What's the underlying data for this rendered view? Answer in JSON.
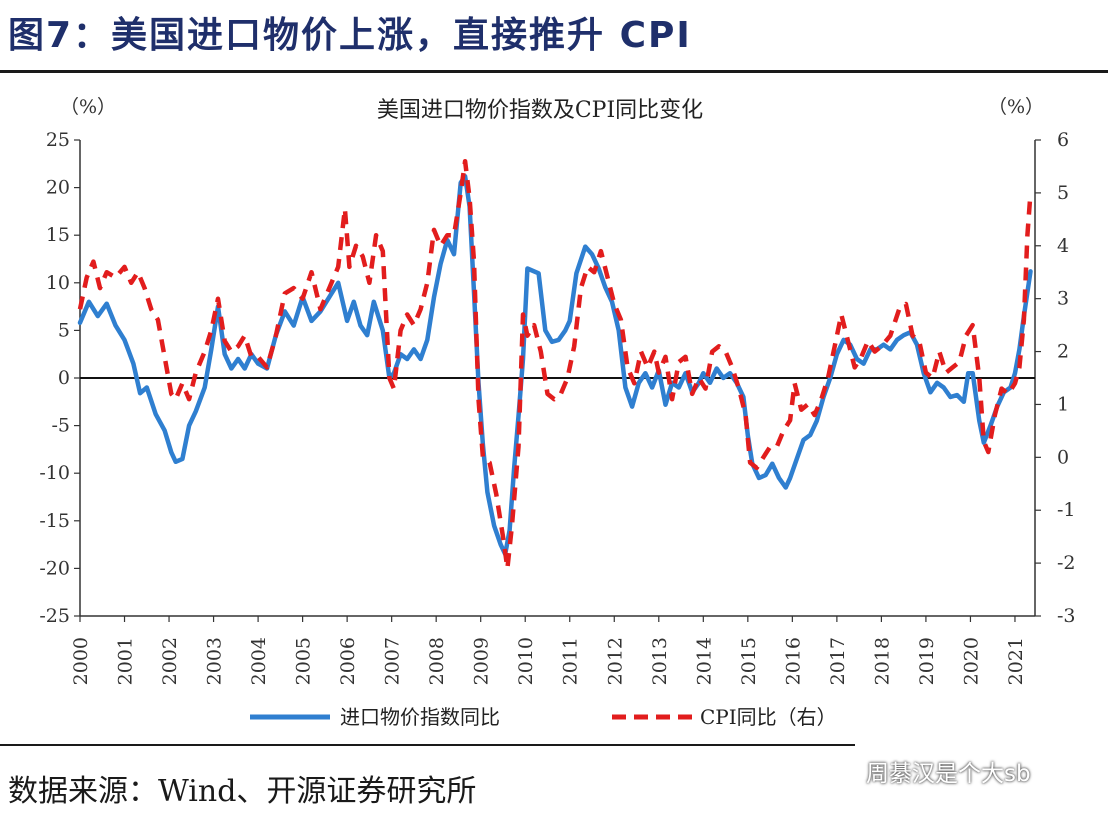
{
  "heading": "图7：美国进口物价上涨，直接推升 CPI",
  "source": "数据来源：Wind、开源证券研究所",
  "watermark": "周綦汉是个大sb",
  "colors": {
    "heading": "#1f2f6b",
    "import_series": "#2f7fd0",
    "cpi_series": "#e21d1d"
  },
  "chart_data": {
    "type": "line",
    "title": "美国进口物价指数及CPI同比变化",
    "left_unit": "（%）",
    "right_unit": "（%）",
    "y_left": {
      "min": -25,
      "max": 25,
      "step": 5
    },
    "y_right": {
      "min": -3,
      "max": 6,
      "step": 1
    },
    "x_ticks": [
      "2000",
      "2001",
      "2002",
      "2003",
      "2004",
      "2005",
      "2006",
      "2007",
      "2008",
      "2009",
      "2010",
      "2011",
      "2012",
      "2013",
      "2014",
      "2015",
      "2016",
      "2017",
      "2018",
      "2019",
      "2020",
      "2021"
    ],
    "zero_line": true,
    "legend_position": "bottom",
    "series": [
      {
        "name": "进口物价指数同比",
        "axis": "left",
        "style": "solid",
        "color": "#2f7fd0",
        "points": [
          [
            2000.0,
            5.8
          ],
          [
            2000.2,
            8.0
          ],
          [
            2000.4,
            6.5
          ],
          [
            2000.6,
            7.8
          ],
          [
            2000.8,
            5.5
          ],
          [
            2001.0,
            4.0
          ],
          [
            2001.2,
            1.5
          ],
          [
            2001.35,
            -1.6
          ],
          [
            2001.5,
            -1.0
          ],
          [
            2001.7,
            -3.8
          ],
          [
            2001.9,
            -5.5
          ],
          [
            2002.05,
            -7.8
          ],
          [
            2002.15,
            -8.8
          ],
          [
            2002.3,
            -8.5
          ],
          [
            2002.45,
            -5.0
          ],
          [
            2002.6,
            -3.5
          ],
          [
            2002.8,
            -1.0
          ],
          [
            2002.95,
            3.0
          ],
          [
            2003.1,
            7.5
          ],
          [
            2003.25,
            2.5
          ],
          [
            2003.4,
            1.0
          ],
          [
            2003.55,
            2.0
          ],
          [
            2003.7,
            1.0
          ],
          [
            2003.85,
            2.5
          ],
          [
            2004.0,
            1.5
          ],
          [
            2004.2,
            1.0
          ],
          [
            2004.4,
            4.5
          ],
          [
            2004.6,
            7.0
          ],
          [
            2004.8,
            5.5
          ],
          [
            2005.0,
            8.5
          ],
          [
            2005.2,
            6.0
          ],
          [
            2005.4,
            7.0
          ],
          [
            2005.6,
            8.5
          ],
          [
            2005.8,
            10.0
          ],
          [
            2006.0,
            6.0
          ],
          [
            2006.15,
            8.0
          ],
          [
            2006.3,
            5.5
          ],
          [
            2006.45,
            4.5
          ],
          [
            2006.6,
            8.0
          ],
          [
            2006.8,
            5.0
          ],
          [
            2006.95,
            0.0
          ],
          [
            2007.05,
            0.5
          ],
          [
            2007.2,
            2.5
          ],
          [
            2007.35,
            2.0
          ],
          [
            2007.5,
            3.0
          ],
          [
            2007.65,
            2.0
          ],
          [
            2007.8,
            4.0
          ],
          [
            2007.95,
            8.5
          ],
          [
            2008.1,
            12.0
          ],
          [
            2008.25,
            14.5
          ],
          [
            2008.4,
            13.0
          ],
          [
            2008.55,
            20.5
          ],
          [
            2008.65,
            21.2
          ],
          [
            2008.75,
            18.0
          ],
          [
            2008.85,
            9.0
          ],
          [
            2008.95,
            -0.5
          ],
          [
            2009.05,
            -7.0
          ],
          [
            2009.15,
            -12.0
          ],
          [
            2009.3,
            -15.5
          ],
          [
            2009.45,
            -17.5
          ],
          [
            2009.55,
            -18.5
          ],
          [
            2009.65,
            -16.0
          ],
          [
            2009.75,
            -9.5
          ],
          [
            2009.85,
            -4.0
          ],
          [
            2009.95,
            2.0
          ],
          [
            2010.05,
            11.5
          ],
          [
            2010.3,
            11.0
          ],
          [
            2010.45,
            5.0
          ],
          [
            2010.6,
            3.8
          ],
          [
            2010.75,
            4.0
          ],
          [
            2010.9,
            5.0
          ],
          [
            2011.0,
            6.0
          ],
          [
            2011.15,
            11.0
          ],
          [
            2011.35,
            13.8
          ],
          [
            2011.5,
            13.0
          ],
          [
            2011.65,
            11.5
          ],
          [
            2011.8,
            9.5
          ],
          [
            2011.95,
            8.0
          ],
          [
            2012.1,
            5.0
          ],
          [
            2012.25,
            -1.0
          ],
          [
            2012.4,
            -3.0
          ],
          [
            2012.55,
            -0.5
          ],
          [
            2012.7,
            0.5
          ],
          [
            2012.85,
            -1.0
          ],
          [
            2013.0,
            0.8
          ],
          [
            2013.15,
            -2.8
          ],
          [
            2013.3,
            -0.5
          ],
          [
            2013.45,
            -1.0
          ],
          [
            2013.6,
            0.5
          ],
          [
            2013.75,
            -1.5
          ],
          [
            2013.9,
            -0.5
          ],
          [
            2014.0,
            0.5
          ],
          [
            2014.15,
            -0.5
          ],
          [
            2014.3,
            1.0
          ],
          [
            2014.45,
            0.0
          ],
          [
            2014.6,
            0.5
          ],
          [
            2014.75,
            -0.5
          ],
          [
            2014.9,
            -2.0
          ],
          [
            2015.0,
            -6.0
          ],
          [
            2015.1,
            -9.0
          ],
          [
            2015.25,
            -10.5
          ],
          [
            2015.4,
            -10.2
          ],
          [
            2015.55,
            -9.0
          ],
          [
            2015.7,
            -10.5
          ],
          [
            2015.85,
            -11.5
          ],
          [
            2015.95,
            -10.5
          ],
          [
            2016.1,
            -8.5
          ],
          [
            2016.25,
            -6.5
          ],
          [
            2016.4,
            -6.0
          ],
          [
            2016.55,
            -4.5
          ],
          [
            2016.7,
            -2.0
          ],
          [
            2016.85,
            0.0
          ],
          [
            2017.0,
            2.5
          ],
          [
            2017.15,
            4.0
          ],
          [
            2017.3,
            3.5
          ],
          [
            2017.45,
            2.0
          ],
          [
            2017.6,
            1.5
          ],
          [
            2017.75,
            3.0
          ],
          [
            2017.9,
            3.0
          ],
          [
            2018.05,
            3.5
          ],
          [
            2018.2,
            3.0
          ],
          [
            2018.35,
            4.0
          ],
          [
            2018.5,
            4.5
          ],
          [
            2018.65,
            4.8
          ],
          [
            2018.8,
            3.5
          ],
          [
            2018.95,
            0.5
          ],
          [
            2019.1,
            -1.5
          ],
          [
            2019.25,
            -0.5
          ],
          [
            2019.4,
            -1.0
          ],
          [
            2019.55,
            -2.0
          ],
          [
            2019.7,
            -1.8
          ],
          [
            2019.85,
            -2.5
          ],
          [
            2019.95,
            0.5
          ],
          [
            2020.05,
            0.5
          ],
          [
            2020.2,
            -4.5
          ],
          [
            2020.3,
            -6.8
          ],
          [
            2020.45,
            -5.0
          ],
          [
            2020.6,
            -3.0
          ],
          [
            2020.75,
            -1.5
          ],
          [
            2020.9,
            -1.0
          ],
          [
            2021.0,
            0.5
          ],
          [
            2021.1,
            3.0
          ],
          [
            2021.2,
            6.5
          ],
          [
            2021.28,
            9.0
          ],
          [
            2021.35,
            11.2
          ]
        ]
      },
      {
        "name": "CPI同比（右）",
        "axis": "right",
        "style": "dashed",
        "color": "#e21d1d",
        "points": [
          [
            2000.0,
            2.8
          ],
          [
            2000.15,
            3.4
          ],
          [
            2000.3,
            3.7
          ],
          [
            2000.45,
            3.2
          ],
          [
            2000.6,
            3.5
          ],
          [
            2000.8,
            3.4
          ],
          [
            2001.0,
            3.6
          ],
          [
            2001.15,
            3.3
          ],
          [
            2001.3,
            3.5
          ],
          [
            2001.45,
            3.2
          ],
          [
            2001.6,
            2.8
          ],
          [
            2001.75,
            2.6
          ],
          [
            2001.9,
            1.9
          ],
          [
            2002.05,
            1.2
          ],
          [
            2002.15,
            1.1
          ],
          [
            2002.3,
            1.4
          ],
          [
            2002.45,
            1.1
          ],
          [
            2002.6,
            1.6
          ],
          [
            2002.8,
            2.0
          ],
          [
            2002.95,
            2.4
          ],
          [
            2003.1,
            3.0
          ],
          [
            2003.25,
            2.2
          ],
          [
            2003.4,
            2.0
          ],
          [
            2003.55,
            2.1
          ],
          [
            2003.7,
            2.3
          ],
          [
            2003.85,
            1.9
          ],
          [
            2004.0,
            1.9
          ],
          [
            2004.2,
            1.7
          ],
          [
            2004.4,
            2.3
          ],
          [
            2004.6,
            3.1
          ],
          [
            2004.8,
            3.2
          ],
          [
            2005.0,
            3.0
          ],
          [
            2005.2,
            3.5
          ],
          [
            2005.4,
            2.8
          ],
          [
            2005.6,
            3.2
          ],
          [
            2005.8,
            3.6
          ],
          [
            2005.95,
            4.7
          ],
          [
            2006.05,
            3.6
          ],
          [
            2006.2,
            4.0
          ],
          [
            2006.35,
            3.8
          ],
          [
            2006.5,
            3.3
          ],
          [
            2006.65,
            4.2
          ],
          [
            2006.8,
            3.9
          ],
          [
            2006.95,
            1.5
          ],
          [
            2007.05,
            1.3
          ],
          [
            2007.2,
            2.4
          ],
          [
            2007.35,
            2.7
          ],
          [
            2007.5,
            2.5
          ],
          [
            2007.65,
            2.8
          ],
          [
            2007.8,
            3.3
          ],
          [
            2007.95,
            4.3
          ],
          [
            2008.1,
            4.0
          ],
          [
            2008.25,
            4.2
          ],
          [
            2008.4,
            4.2
          ],
          [
            2008.55,
            5.0
          ],
          [
            2008.65,
            5.6
          ],
          [
            2008.75,
            4.9
          ],
          [
            2008.85,
            3.7
          ],
          [
            2008.95,
            1.1
          ],
          [
            2009.05,
            0.0
          ],
          [
            2009.2,
            -0.1
          ],
          [
            2009.35,
            -0.7
          ],
          [
            2009.5,
            -1.5
          ],
          [
            2009.6,
            -2.1
          ],
          [
            2009.7,
            -1.3
          ],
          [
            2009.85,
            0.2
          ],
          [
            2009.95,
            2.7
          ],
          [
            2010.05,
            2.3
          ],
          [
            2010.2,
            2.5
          ],
          [
            2010.35,
            2.0
          ],
          [
            2010.5,
            1.2
          ],
          [
            2010.65,
            1.1
          ],
          [
            2010.8,
            1.2
          ],
          [
            2010.95,
            1.5
          ],
          [
            2011.1,
            2.1
          ],
          [
            2011.25,
            3.2
          ],
          [
            2011.4,
            3.6
          ],
          [
            2011.55,
            3.5
          ],
          [
            2011.7,
            3.9
          ],
          [
            2011.85,
            3.4
          ],
          [
            2012.0,
            2.9
          ],
          [
            2012.15,
            2.6
          ],
          [
            2012.3,
            1.7
          ],
          [
            2012.45,
            1.4
          ],
          [
            2012.6,
            2.0
          ],
          [
            2012.75,
            1.7
          ],
          [
            2012.9,
            2.0
          ],
          [
            2013.0,
            1.6
          ],
          [
            2013.15,
            1.9
          ],
          [
            2013.3,
            1.1
          ],
          [
            2013.45,
            1.8
          ],
          [
            2013.6,
            1.9
          ],
          [
            2013.75,
            1.2
          ],
          [
            2013.9,
            1.5
          ],
          [
            2014.05,
            1.3
          ],
          [
            2014.2,
            2.0
          ],
          [
            2014.35,
            2.1
          ],
          [
            2014.5,
            2.0
          ],
          [
            2014.65,
            1.7
          ],
          [
            2014.8,
            1.3
          ],
          [
            2014.95,
            0.8
          ],
          [
            2015.05,
            -0.1
          ],
          [
            2015.2,
            -0.2
          ],
          [
            2015.35,
            0.0
          ],
          [
            2015.5,
            0.2
          ],
          [
            2015.65,
            0.2
          ],
          [
            2015.8,
            0.5
          ],
          [
            2015.95,
            0.7
          ],
          [
            2016.05,
            1.4
          ],
          [
            2016.2,
            0.9
          ],
          [
            2016.35,
            1.0
          ],
          [
            2016.5,
            0.8
          ],
          [
            2016.65,
            1.1
          ],
          [
            2016.8,
            1.5
          ],
          [
            2016.95,
            2.1
          ],
          [
            2017.1,
            2.7
          ],
          [
            2017.25,
            2.2
          ],
          [
            2017.4,
            1.7
          ],
          [
            2017.55,
            1.9
          ],
          [
            2017.7,
            2.2
          ],
          [
            2017.85,
            2.0
          ],
          [
            2018.0,
            2.1
          ],
          [
            2018.2,
            2.3
          ],
          [
            2018.4,
            2.8
          ],
          [
            2018.55,
            2.9
          ],
          [
            2018.7,
            2.3
          ],
          [
            2018.85,
            2.2
          ],
          [
            2019.0,
            1.6
          ],
          [
            2019.15,
            1.5
          ],
          [
            2019.3,
            2.0
          ],
          [
            2019.45,
            1.6
          ],
          [
            2019.6,
            1.7
          ],
          [
            2019.75,
            1.8
          ],
          [
            2019.9,
            2.3
          ],
          [
            2020.05,
            2.5
          ],
          [
            2020.2,
            1.5
          ],
          [
            2020.3,
            0.3
          ],
          [
            2020.4,
            0.1
          ],
          [
            2020.55,
            0.8
          ],
          [
            2020.7,
            1.3
          ],
          [
            2020.85,
            1.2
          ],
          [
            2021.0,
            1.4
          ],
          [
            2021.1,
            1.7
          ],
          [
            2021.2,
            2.6
          ],
          [
            2021.28,
            4.2
          ],
          [
            2021.35,
            5.0
          ]
        ]
      }
    ]
  }
}
